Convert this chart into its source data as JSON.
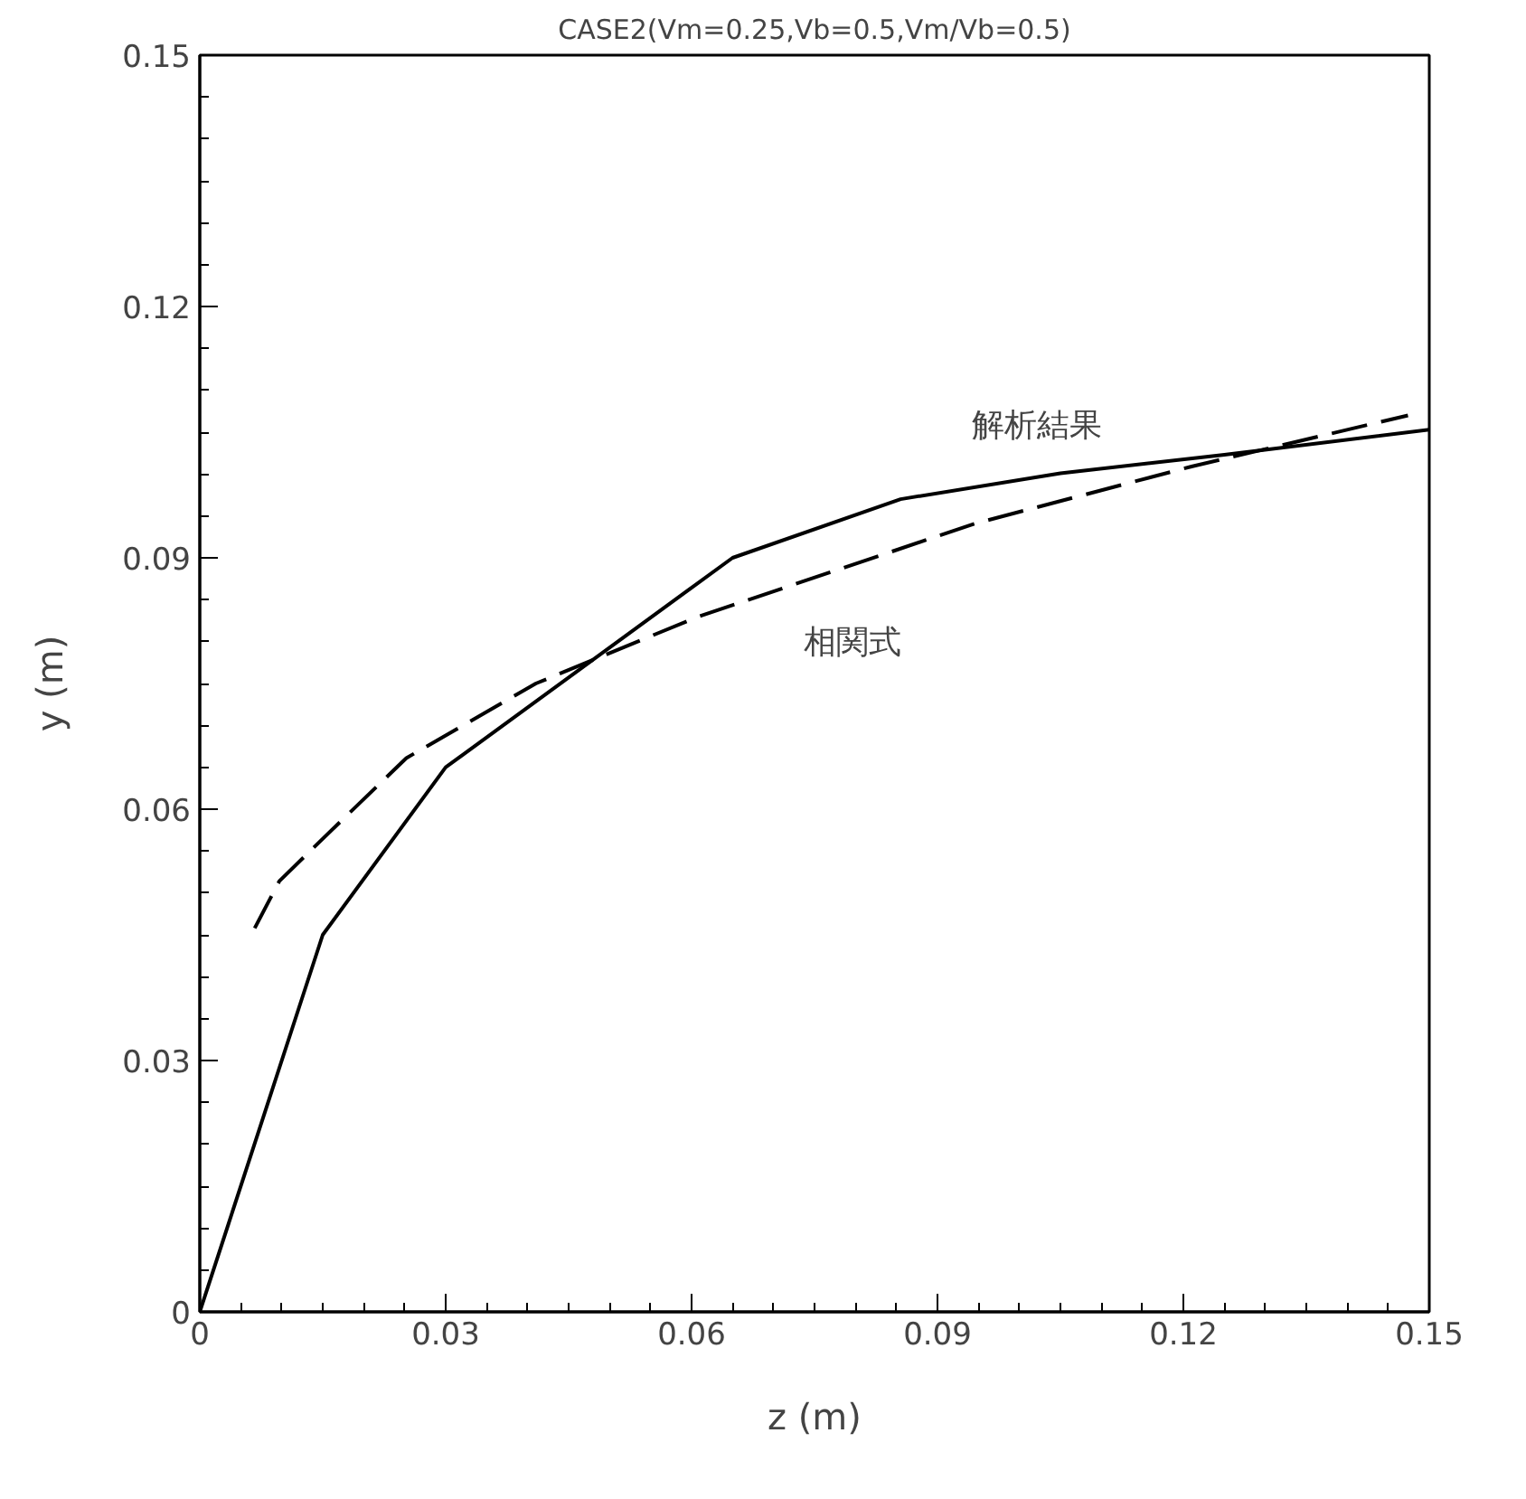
{
  "chart_data": {
    "type": "line",
    "title": "CASE2(Vm=0.25,Vb=0.5,Vm/Vb=0.5)",
    "xlabel": "z (m)",
    "ylabel": "y (m)",
    "xlim": [
      0,
      0.15
    ],
    "ylim": [
      0,
      0.15
    ],
    "xticks": [
      0,
      0.03,
      0.06,
      0.09,
      0.12,
      0.15
    ],
    "yticks": [
      0,
      0.03,
      0.06,
      0.09,
      0.12,
      0.15
    ],
    "grid": false,
    "marker": "none",
    "series": [
      {
        "name": "解析結果",
        "color": "#000000",
        "line_style": "solid",
        "x": [
          0,
          0.015,
          0.03,
          0.065,
          0.0855,
          0.105,
          0.125,
          0.15
        ],
        "values": [
          0,
          0.045,
          0.065,
          0.09,
          0.097,
          0.1001,
          0.1023,
          0.1053
        ]
      },
      {
        "name": "相関式",
        "color": "#000000",
        "line_style": "dashed",
        "x": [
          0.0067,
          0.0097,
          0.0145,
          0.0252,
          0.041,
          0.0606,
          0.0946,
          0.121,
          0.1474
        ],
        "values": [
          0.0458,
          0.0514,
          0.056,
          0.0661,
          0.075,
          0.0829,
          0.0941,
          0.1009,
          0.107
        ]
      }
    ]
  }
}
